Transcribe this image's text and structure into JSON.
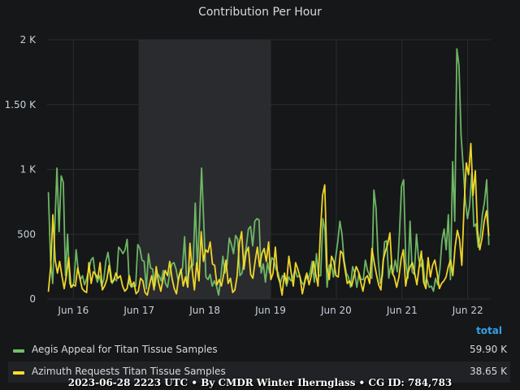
{
  "panel": {
    "title": "Contribution Per Hour",
    "legend_header": "total",
    "footer": "2023-06-28 2223 UTC • By CMDR Winter Iherngl​ass • CG ID: 784,783"
  },
  "legend": [
    {
      "name": "Aegis Appeal for Titan Tissue Samples",
      "total": "59.90 K",
      "color": "#73bf69"
    },
    {
      "name": "Azimuth Requests Titan Tissue Samples",
      "total": "38.65 K",
      "color": "#fade2a"
    }
  ],
  "chart_data": {
    "type": "line",
    "title": "Contribution Per Hour",
    "xlabel": "",
    "ylabel": "",
    "x_tick_labels": [
      "Jun 16",
      "Jun 17",
      "Jun 18",
      "Jun 19",
      "Jun 20",
      "Jun 21",
      "Jun 22"
    ],
    "x_range_days": [
      15.6,
      22.35
    ],
    "highlight_region_days": [
      17.0,
      19.0
    ],
    "y_ticks": [
      0,
      500,
      1000,
      1500,
      2000
    ],
    "y_tick_labels": [
      "0",
      "500",
      "1 K",
      "1.50 K",
      "2 K"
    ],
    "ylim": [
      0,
      2000
    ],
    "grid": true,
    "legend_position": "bottom",
    "series": [
      {
        "name": "Aegis Appeal for Titan Tissue Samples",
        "color": "#73bf69",
        "values": [
          820,
          300,
          120,
          560,
          1010,
          520,
          950,
          900,
          180,
          500,
          120,
          90,
          130,
          380,
          220,
          150,
          180,
          110,
          160,
          230,
          300,
          320,
          190,
          130,
          180,
          100,
          150,
          290,
          360,
          240,
          120,
          160,
          140,
          400,
          380,
          350,
          380,
          460,
          120,
          90,
          100,
          100,
          420,
          390,
          300,
          290,
          80,
          350,
          240,
          230,
          100,
          200,
          180,
          140,
          220,
          120,
          90,
          200,
          270,
          280,
          230,
          140,
          200,
          240,
          480,
          130,
          200,
          260,
          260,
          740,
          250,
          570,
          1010,
          600,
          170,
          150,
          190,
          100,
          140,
          100,
          30,
          160,
          330,
          200,
          270,
          470,
          420,
          350,
          490,
          460,
          180,
          200,
          310,
          400,
          540,
          560,
          410,
          600,
          620,
          610,
          200,
          270,
          130,
          280,
          200,
          320,
          300,
          230,
          200,
          120,
          180,
          170,
          100,
          170,
          140,
          170,
          230,
          170,
          180,
          130,
          110,
          180,
          150,
          200,
          290,
          130,
          350,
          180,
          180,
          620,
          530,
          90,
          260,
          270,
          170,
          320,
          440,
          600,
          500,
          300,
          200,
          170,
          90,
          250,
          200,
          90,
          200,
          150,
          150,
          300,
          220,
          180,
          160,
          840,
          700,
          320,
          120,
          180,
          440,
          450,
          160,
          260,
          200,
          300,
          210,
          500,
          870,
          920,
          270,
          160,
          600,
          210,
          190,
          500,
          310,
          250,
          300,
          120,
          150,
          90,
          100,
          60,
          160,
          110,
          230,
          450,
          540,
          380,
          650,
          150,
          1060,
          600,
          1930,
          1800,
          1260,
          1010,
          750,
          620,
          720,
          970,
          560,
          580,
          400,
          480,
          650,
          750,
          920,
          420
        ]
      },
      {
        "name": "Azimuth Requests Titan Tissue Samples",
        "color": "#fade2a",
        "values": [
          60,
          250,
          650,
          300,
          200,
          290,
          180,
          80,
          180,
          320,
          90,
          110,
          100,
          240,
          160,
          80,
          60,
          50,
          280,
          120,
          210,
          190,
          160,
          280,
          70,
          100,
          150,
          260,
          130,
          140,
          200,
          160,
          180,
          100,
          60,
          80,
          180,
          100,
          130,
          40,
          60,
          160,
          140,
          50,
          30,
          110,
          180,
          70,
          250,
          130,
          60,
          150,
          220,
          180,
          290,
          160,
          80,
          40,
          170,
          230,
          100,
          170,
          90,
          430,
          220,
          70,
          280,
          140,
          520,
          290,
          380,
          360,
          440,
          270,
          260,
          110,
          150,
          100,
          190,
          300,
          120,
          160,
          50,
          70,
          180,
          430,
          520,
          230,
          360,
          400,
          190,
          160,
          290,
          400,
          250,
          350,
          390,
          290,
          440,
          150,
          200,
          400,
          180,
          130,
          30,
          200,
          120,
          330,
          210,
          100,
          280,
          230,
          170,
          40,
          120,
          200,
          110,
          180,
          290,
          190,
          100,
          500,
          800,
          880,
          240,
          150,
          330,
          290,
          180,
          170,
          370,
          350,
          230,
          120,
          140,
          100,
          180,
          250,
          210,
          130,
          60,
          160,
          180,
          120,
          390,
          280,
          190,
          110,
          70,
          300,
          370,
          420,
          510,
          200,
          170,
          90,
          170,
          310,
          380,
          100,
          200,
          250,
          280,
          200,
          110,
          250,
          370,
          130,
          80,
          320,
          170,
          260,
          300,
          200,
          80,
          120,
          140,
          170,
          250,
          300,
          180,
          400,
          530,
          460,
          260,
          720,
          1050,
          960,
          1200,
          800,
          990,
          530,
          380,
          470,
          600,
          680,
          490
        ]
      }
    ]
  }
}
